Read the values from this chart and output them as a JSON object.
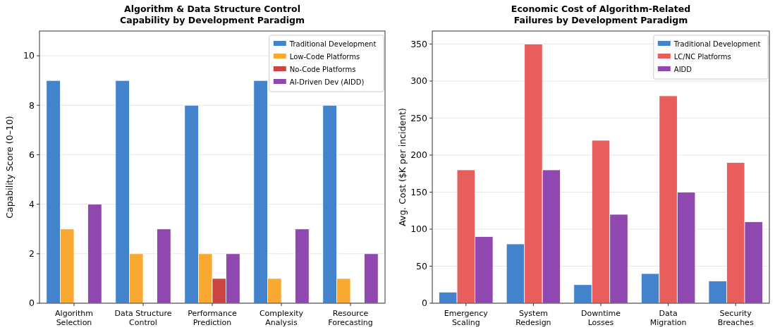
{
  "chart_data": [
    {
      "type": "bar",
      "title": "Algorithm & Data Structure Control\nCapability by Development Paradigm",
      "ylabel": "Capability Score (0–10)",
      "categories": [
        "Algorithm Selection",
        "Data Structure Control",
        "Performance Prediction",
        "Complexity Analysis",
        "Resource Forecasting"
      ],
      "series": [
        {
          "name": "Traditional Development",
          "color": "#4383cc",
          "values": [
            9,
            9,
            8,
            9,
            8
          ]
        },
        {
          "name": "Low-Code Platforms",
          "color": "#f9a832",
          "values": [
            3,
            2,
            2,
            1,
            1
          ]
        },
        {
          "name": "No-Code Platforms",
          "color": "#cc4444",
          "values": [
            0,
            0,
            1,
            0,
            0
          ]
        },
        {
          "name": "AI-Driven Dev (AIDD)",
          "color": "#8e48b0",
          "values": [
            4,
            3,
            2,
            3,
            2
          ]
        }
      ],
      "ylim": [
        0,
        11
      ],
      "yticks": [
        0,
        2,
        4,
        6,
        8,
        10
      ],
      "grid": "y",
      "legend": "top right"
    },
    {
      "type": "bar",
      "title": "Economic Cost of Algorithm-Related\nFailures by Development Paradigm",
      "ylabel": "Avg. Cost ($K per incident)",
      "categories": [
        "Emergency Scaling",
        "System Redesign",
        "Downtime Losses",
        "Data Migration",
        "Security Breaches"
      ],
      "series": [
        {
          "name": "Traditional Development",
          "color": "#4383cc",
          "values": [
            15,
            80,
            25,
            40,
            30
          ]
        },
        {
          "name": "LC/NC Platforms",
          "color": "#e85e5c",
          "values": [
            180,
            350,
            220,
            280,
            190
          ]
        },
        {
          "name": "AIDD",
          "color": "#8e48b0",
          "values": [
            90,
            180,
            120,
            150,
            110
          ]
        }
      ],
      "ylim": [
        0,
        367.5
      ],
      "yticks": [
        0,
        50,
        100,
        150,
        200,
        250,
        300,
        350
      ],
      "grid": "y",
      "legend": "top right"
    }
  ]
}
